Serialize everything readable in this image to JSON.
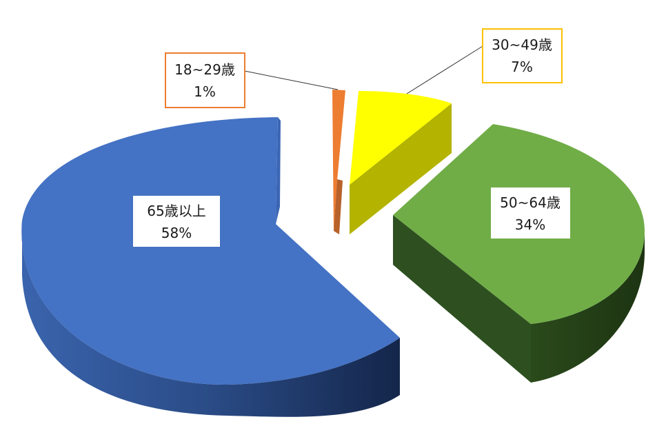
{
  "chart_data": {
    "type": "pie",
    "style": "3d-exploded",
    "slices": [
      {
        "label": "18~29歳",
        "value": 1,
        "percent_label": "1%",
        "color": "#ed7d31",
        "side_color": "#b8612a"
      },
      {
        "label": "30~49歳",
        "value": 7,
        "percent_label": "7%",
        "color": "#ffff00",
        "side_color": "#b3b300"
      },
      {
        "label": "50~64歳",
        "value": 34,
        "percent_label": "34%",
        "color": "#70ad47",
        "side_color": "#2c4a1c"
      },
      {
        "label": "65歳以上",
        "value": 58,
        "percent_label": "58%",
        "color": "#4472c4",
        "side_color": "#1f3a6a"
      }
    ],
    "legend": "none",
    "data_labels": "category-and-percent"
  }
}
